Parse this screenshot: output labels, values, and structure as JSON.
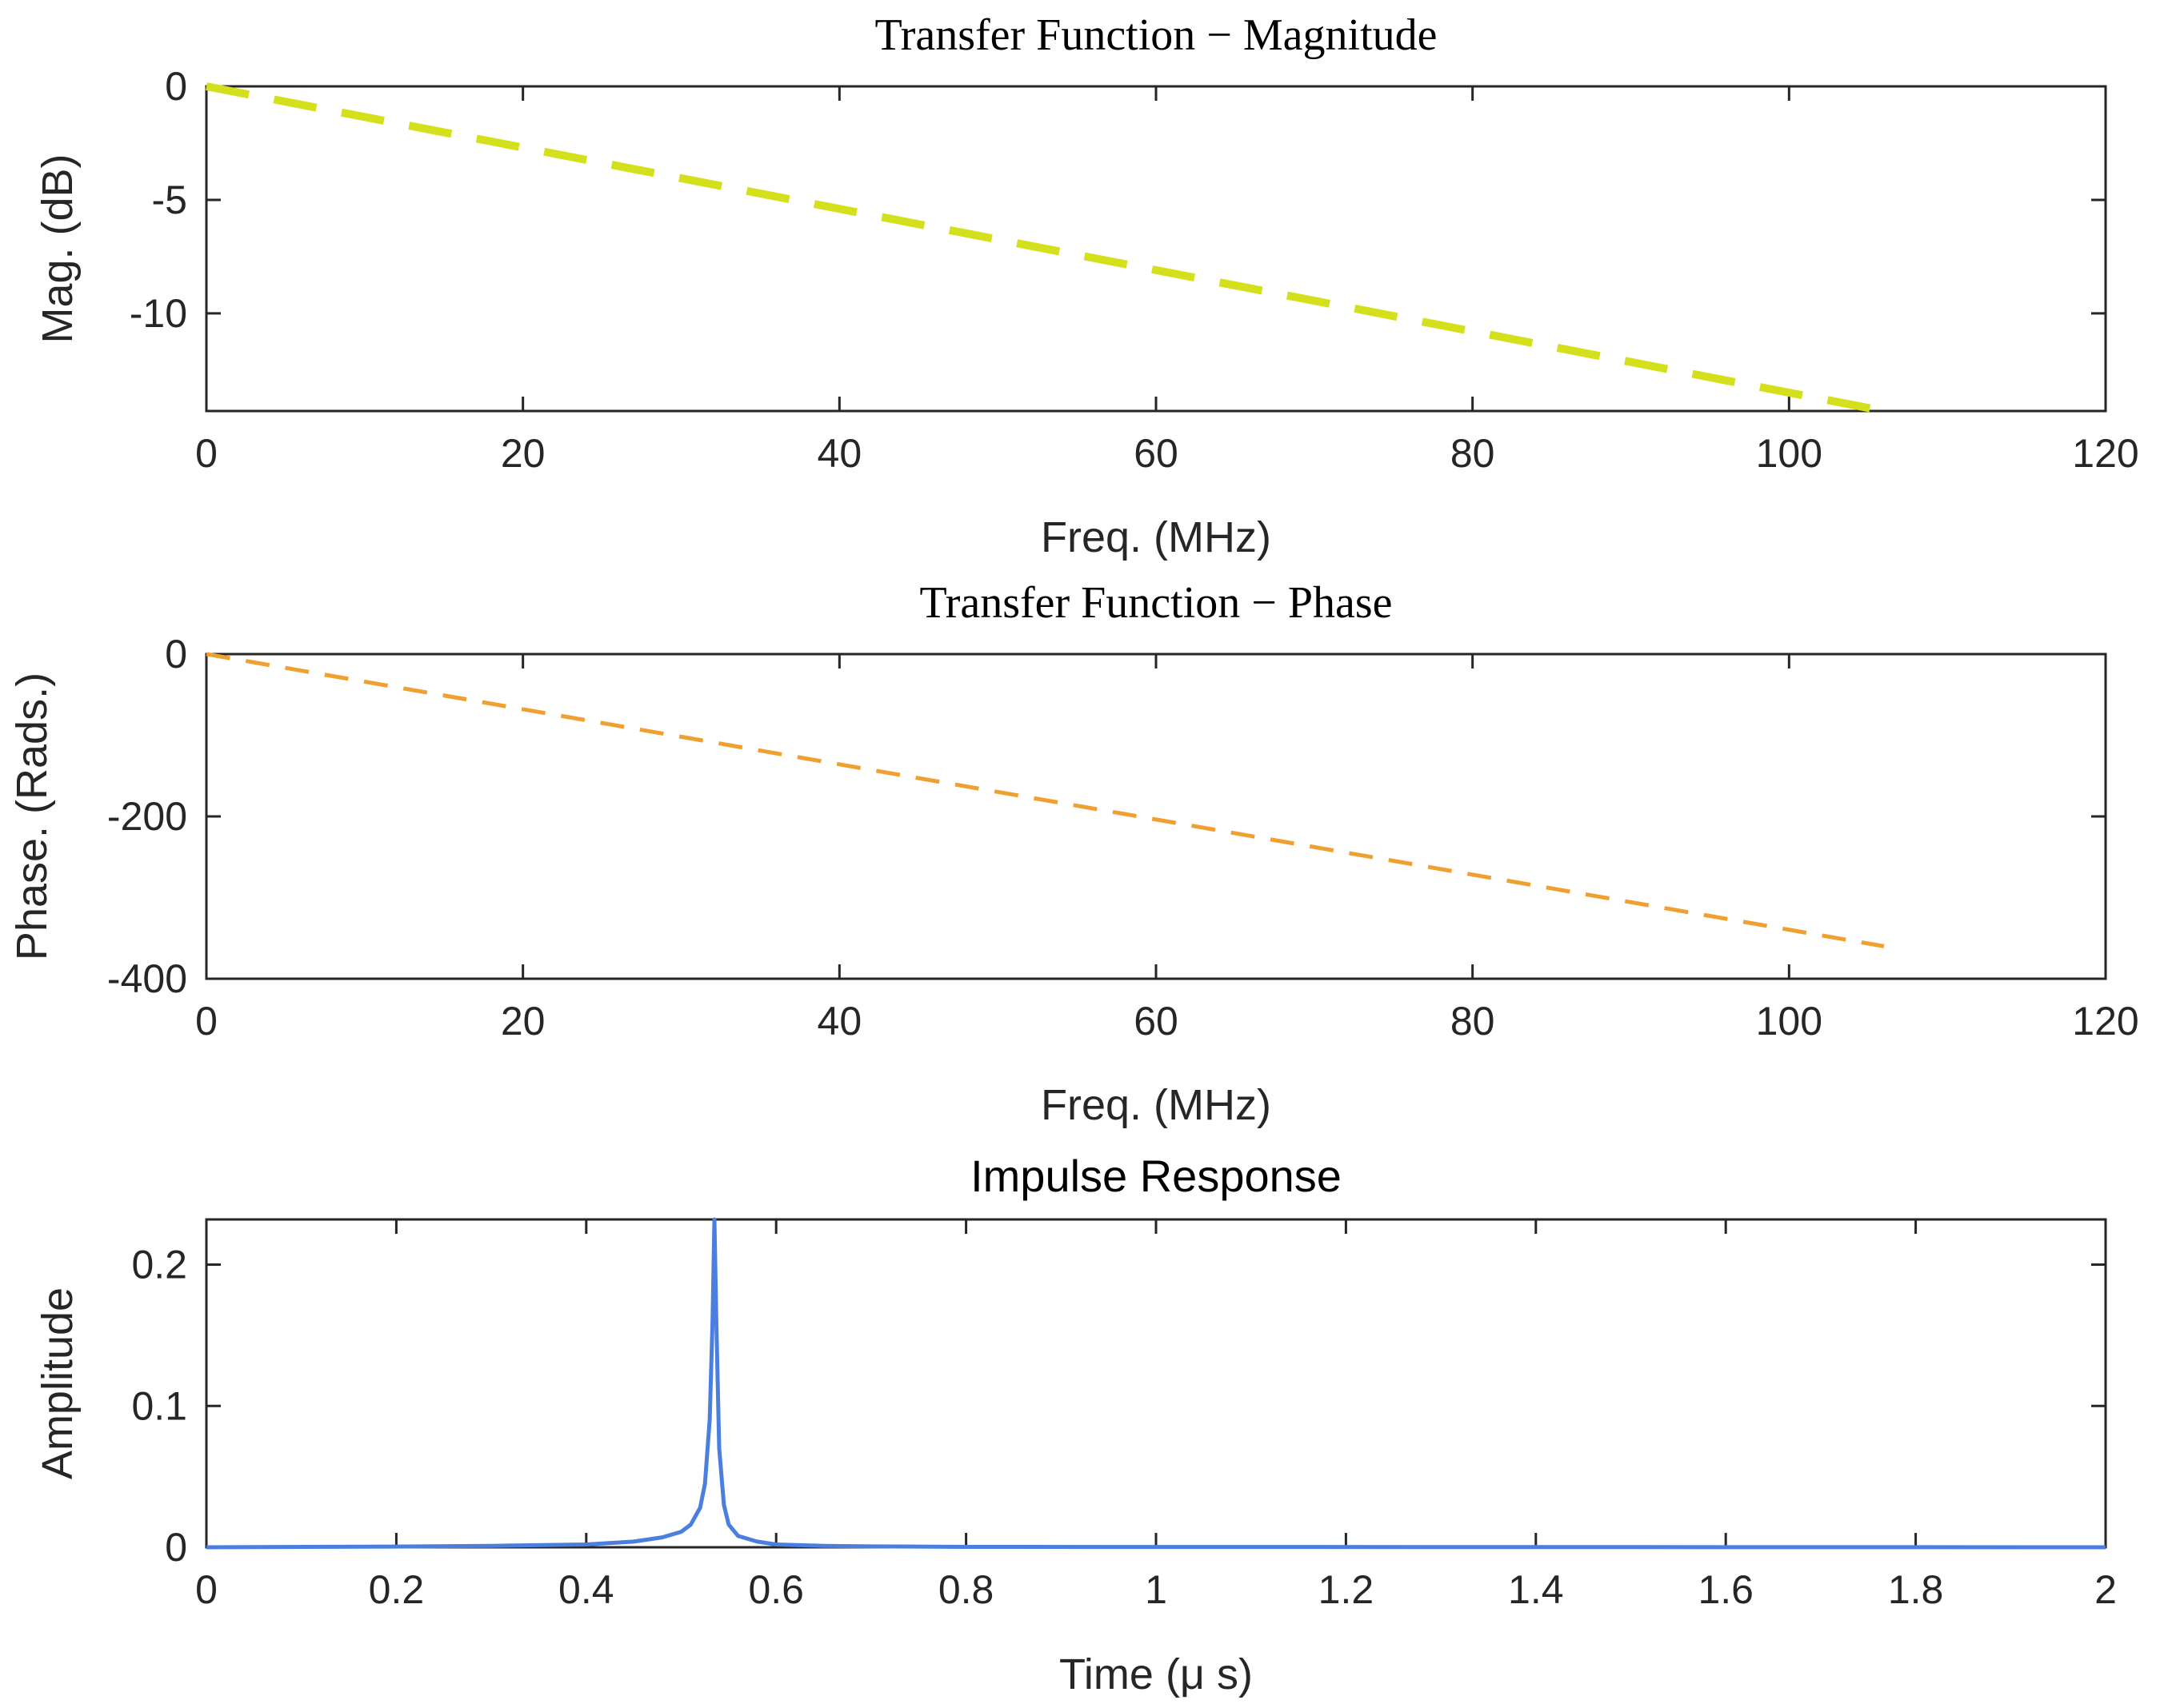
{
  "chart_data": [
    {
      "id": "magnitude",
      "type": "line",
      "title": "Transfer Function − Magnitude",
      "title_style": "serif",
      "xlabel": "Freq. (MHz)",
      "ylabel": "Mag. (dB)",
      "xlim": [
        0,
        120
      ],
      "ylim": [
        -14.3,
        0
      ],
      "xticks": [
        0,
        20,
        40,
        60,
        80,
        100,
        120
      ],
      "xtick_labels": [
        "0",
        "20",
        "40",
        "60",
        "80",
        "100",
        "120"
      ],
      "yticks": [
        0,
        -5,
        -10
      ],
      "ytick_labels": [
        "0",
        "-5",
        "-10"
      ],
      "series": [
        {
          "name": "Magnitude",
          "style": "dashed",
          "color": "#d4e01c",
          "x": [
            0,
            106
          ],
          "y": [
            0,
            -14.3
          ]
        }
      ]
    },
    {
      "id": "phase",
      "type": "line",
      "title": "Transfer Function − Phase",
      "title_style": "serif",
      "xlabel": "Freq. (MHz)",
      "ylabel": "Phase. (Rads.)",
      "xlim": [
        0,
        120
      ],
      "ylim": [
        -400,
        0
      ],
      "xticks": [
        0,
        20,
        40,
        60,
        80,
        100,
        120
      ],
      "xtick_labels": [
        "0",
        "20",
        "40",
        "60",
        "80",
        "100",
        "120"
      ],
      "yticks": [
        0,
        -200,
        -400
      ],
      "ytick_labels": [
        "0",
        "-200",
        "-400"
      ],
      "series": [
        {
          "name": "Phase",
          "style": "dashed",
          "color": "#f0a030",
          "x": [
            0,
            106
          ],
          "y": [
            0,
            -360
          ]
        }
      ]
    },
    {
      "id": "impulse",
      "type": "line",
      "title": "Impulse Response",
      "title_style": "sans",
      "xlabel": "Time (μ s)",
      "ylabel": "Amplitude",
      "xlim": [
        0,
        2
      ],
      "ylim": [
        0,
        0.232
      ],
      "xticks": [
        0,
        0.2,
        0.4,
        0.6,
        0.8,
        1,
        1.2,
        1.4,
        1.6,
        1.8,
        2
      ],
      "xtick_labels": [
        "0",
        "0.2",
        "0.4",
        "0.6",
        "0.8",
        "1",
        "1.2",
        "1.4",
        "1.6",
        "1.8",
        "2"
      ],
      "yticks": [
        0,
        0.1,
        0.2
      ],
      "ytick_labels": [
        "0",
        "0.1",
        "0.2"
      ],
      "series": [
        {
          "name": "Impulse",
          "style": "solid",
          "color": "#4a7fe0",
          "x": [
            0,
            0.2,
            0.3,
            0.4,
            0.45,
            0.48,
            0.5,
            0.51,
            0.52,
            0.525,
            0.53,
            0.533,
            0.535,
            0.537,
            0.54,
            0.545,
            0.55,
            0.56,
            0.58,
            0.6,
            0.65,
            0.7,
            0.8,
            1.0,
            1.5,
            2.0
          ],
          "y": [
            0.0,
            0.0005,
            0.001,
            0.002,
            0.004,
            0.007,
            0.011,
            0.016,
            0.028,
            0.045,
            0.09,
            0.16,
            0.232,
            0.16,
            0.07,
            0.03,
            0.016,
            0.008,
            0.004,
            0.002,
            0.001,
            0.0006,
            0.0003,
            0.0002,
            0.0001,
            0.0
          ]
        }
      ]
    }
  ]
}
